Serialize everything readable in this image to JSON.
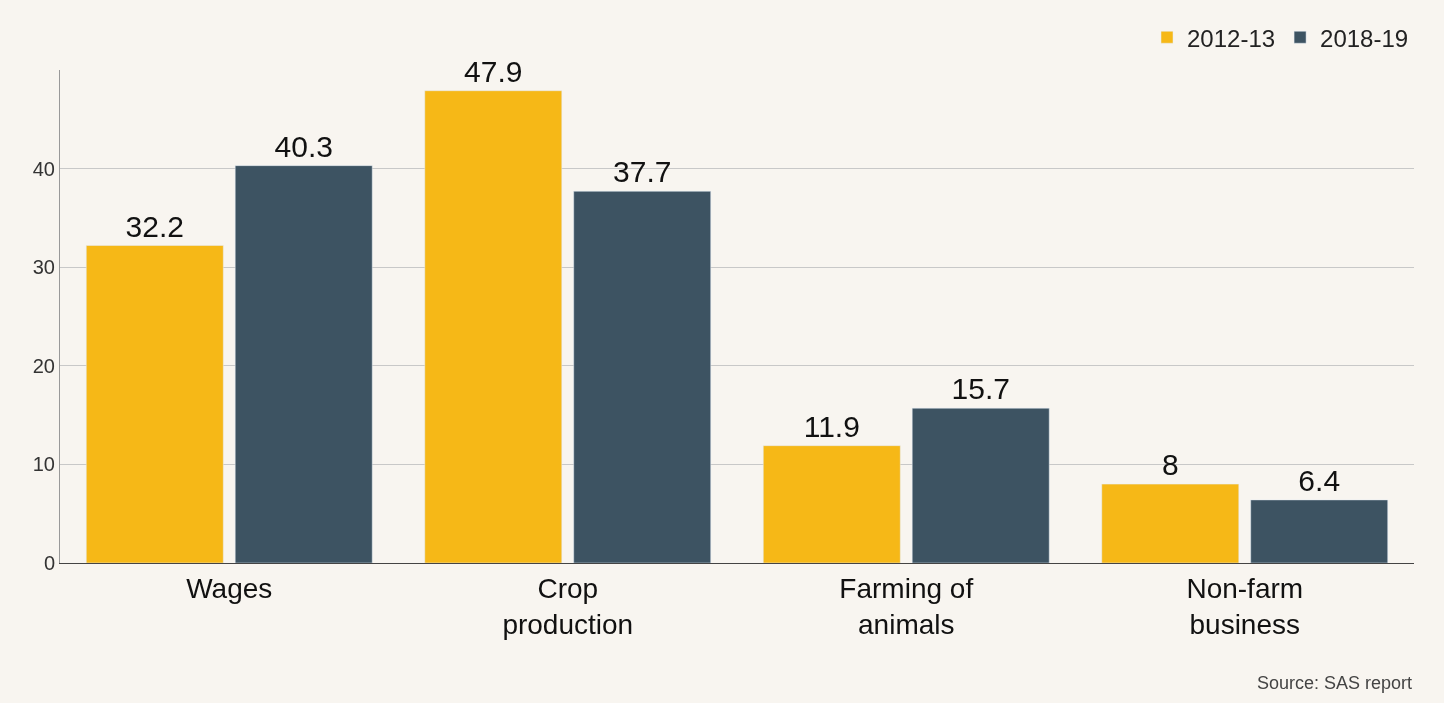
{
  "chart_data": {
    "type": "bar",
    "categories": [
      "Wages",
      "Crop\nproduction",
      "Farming of\nanimals",
      "Non-farm\nbusiness"
    ],
    "series": [
      {
        "name": "2012-13",
        "color": "#f6b817",
        "values": [
          32.2,
          47.9,
          11.9,
          8
        ]
      },
      {
        "name": "2018-19",
        "color": "#3d5362",
        "values": [
          40.3,
          37.7,
          15.7,
          6.4
        ]
      }
    ],
    "ylim": [
      0,
      50
    ],
    "yticks": [
      0,
      10,
      20,
      30,
      40
    ],
    "grid": "y",
    "legend": "top right",
    "data_labels": true,
    "annotations": [
      "Source: SAS report"
    ]
  }
}
